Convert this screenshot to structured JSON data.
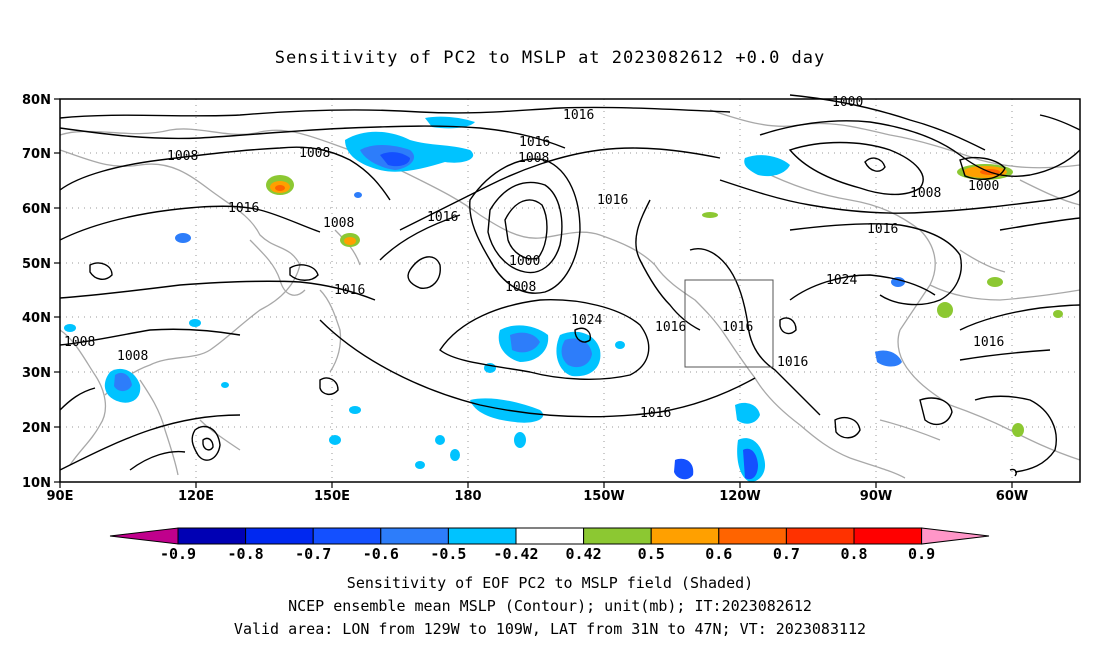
{
  "title": "Sensitivity of PC2 to MSLP at 2023082612 +0.0 day",
  "axes": {
    "lat_labels": [
      "80N",
      "70N",
      "60N",
      "50N",
      "40N",
      "30N",
      "20N",
      "10N"
    ],
    "lon_labels": [
      "90E",
      "120E",
      "150E",
      "180",
      "150W",
      "120W",
      "90W",
      "60W"
    ]
  },
  "colorbar": {
    "tick_labels": [
      "-0.9",
      "-0.8",
      "-0.7",
      "-0.6",
      "-0.5",
      "-0.42",
      "0.42",
      "0.5",
      "0.6",
      "0.7",
      "0.8",
      "0.9"
    ],
    "colors": [
      "#c0008c",
      "#0000b4",
      "#0028f0",
      "#1450ff",
      "#2d7dfa",
      "#00c3ff",
      "#ffffff",
      "#8cc832",
      "#ffa000",
      "#ff6400",
      "#ff3200",
      "#ff0000",
      "#ff96c8"
    ]
  },
  "contour_labels": [
    {
      "text": "1016"
    },
    {
      "text": "1000"
    },
    {
      "text": "1008"
    },
    {
      "text": "1008"
    },
    {
      "text": "1016"
    },
    {
      "text": "1008"
    },
    {
      "text": "1016"
    },
    {
      "text": "1008"
    },
    {
      "text": "1016"
    },
    {
      "text": "1000"
    },
    {
      "text": "1008"
    },
    {
      "text": "1016"
    },
    {
      "text": "1000"
    },
    {
      "text": "1008"
    },
    {
      "text": "1016"
    },
    {
      "text": "1024"
    },
    {
      "text": "1024"
    },
    {
      "text": "1016"
    },
    {
      "text": "1016"
    },
    {
      "text": "1016"
    },
    {
      "text": "1016"
    },
    {
      "text": "1008"
    },
    {
      "text": "1008"
    },
    {
      "text": "1016"
    },
    {
      "text": "1016"
    }
  ],
  "captions": {
    "line1": "Sensitivity of EOF PC2 to MSLP field (Shaded)",
    "line2": "NCEP ensemble mean MSLP (Contour); unit(mb); IT:2023082612",
    "line3": "Valid area: LON from 129W to 109W, LAT from 31N to 47N; VT: 2023083112"
  }
}
